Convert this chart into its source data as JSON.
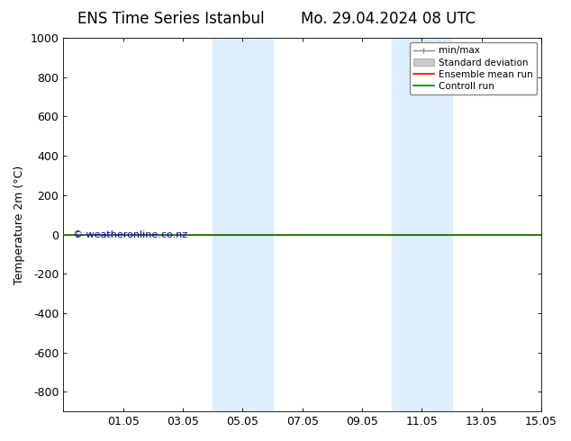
{
  "title_left": "ENS Time Series Istanbul",
  "title_right": "Mo. 29.04.2024 08 UTC",
  "ylabel": "Temperature 2m (°C)",
  "xlim": [
    0,
    16
  ],
  "x_ticks_labels": [
    "01.05",
    "03.05",
    "05.05",
    "07.05",
    "09.05",
    "11.05",
    "13.05",
    "15.05"
  ],
  "x_ticks_positions": [
    2,
    4,
    6,
    8,
    10,
    12,
    14,
    16
  ],
  "ylim_top": -900,
  "ylim_bottom": 1000,
  "yticks": [
    -800,
    -600,
    -400,
    -200,
    0,
    200,
    400,
    600,
    800,
    1000
  ],
  "background_color": "#ffffff",
  "plot_bg_color": "#ffffff",
  "shaded_bands": [
    {
      "x_start": 5.0,
      "x_end": 7.0,
      "color": "#ddeeff"
    },
    {
      "x_start": 11.0,
      "x_end": 13.0,
      "color": "#ddeeff"
    }
  ],
  "horizontal_line_y": 0,
  "ensemble_mean_color": "#ff0000",
  "control_run_color": "#008000",
  "watermark": "© weatheronline.co.nz",
  "watermark_color": "#0000cc",
  "title_fontsize": 12,
  "tick_fontsize": 9,
  "ylabel_fontsize": 9
}
